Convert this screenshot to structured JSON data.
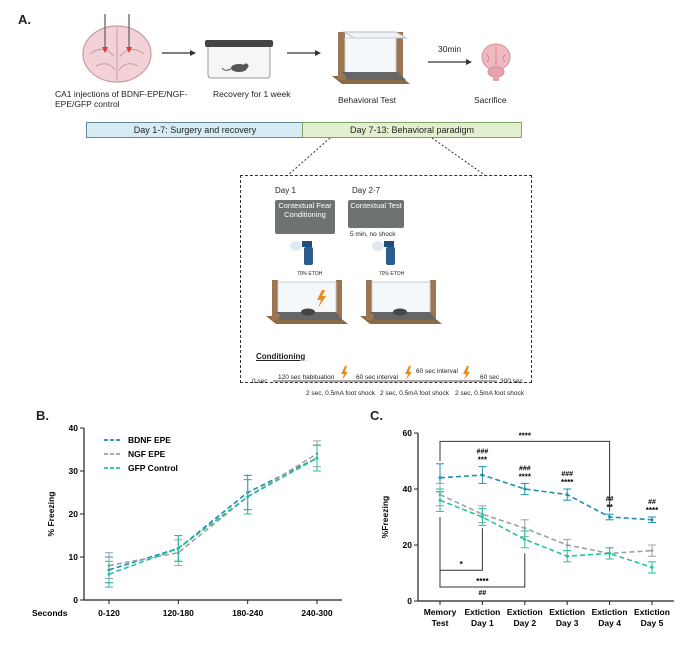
{
  "panelA": {
    "label": "A.",
    "steps": [
      {
        "caption": "CA1 injections of BDNF-EPE/NGF-EPE/GFP control"
      },
      {
        "caption": "Recovery for 1 week"
      },
      {
        "caption": "Behavioral Test"
      },
      {
        "caption": "Sacrifice"
      }
    ],
    "arrow_label": "30min",
    "phase1": "Day 1-7: Surgery and recovery",
    "phase2": "Day 7-13: Behavioral paradigm",
    "inset": {
      "day1": "Day 1",
      "day27": "Day 2-7",
      "box1": "Contextual Fear Conditioning",
      "box2": "Contextual Test",
      "box2_note": "5 min, no shock",
      "etoh1": "70% ETOH",
      "etoh2": "70% ETOH",
      "conditioning_title": "Conditioning",
      "start": "0 sec",
      "end": "300 sec",
      "seg1": "120 sec habituation",
      "seg2": "60 sec interval",
      "seg3": "60 sec interval",
      "seg4": "60 sec",
      "shock1": "2 sec, 0.5mA foot shock",
      "shock2": "2 sec, 0.5mA foot shock",
      "shock3": "2 sec, 0.5mA foot shock"
    }
  },
  "panelB": {
    "label": "B."
  },
  "panelC": {
    "label": "C."
  },
  "colors": {
    "bdnf": "#1f8fb0",
    "ngf": "#a0a0a0",
    "gfp": "#25c2a0",
    "phase1": "#d6ecf5",
    "phase2": "#e3f0cf"
  },
  "chart_data": [
    {
      "type": "line",
      "ylabel": "% Freezing",
      "xlabel": "Seconds",
      "categories": [
        "0-120",
        "120-180",
        "180-240",
        "240-300"
      ],
      "ylim": [
        0,
        40
      ],
      "yticks": [
        "0",
        "10",
        "20",
        "30",
        "40"
      ],
      "legend": [
        "BDNF EPE",
        "NGF EPE",
        "GFP Control"
      ],
      "series": [
        {
          "name": "BDNF EPE",
          "values": [
            7,
            12,
            25,
            33
          ],
          "err": [
            3,
            3,
            4,
            3
          ]
        },
        {
          "name": "NGF EPE",
          "values": [
            8,
            11,
            24,
            34
          ],
          "err": [
            3,
            3,
            4,
            3
          ]
        },
        {
          "name": "GFP Control",
          "values": [
            6,
            12,
            24,
            33
          ],
          "err": [
            3,
            3,
            4,
            3
          ]
        }
      ]
    },
    {
      "type": "line",
      "ylabel": "%Freezing",
      "categories": [
        "Memory Test",
        "Extiction Day 1",
        "Extiction Day 2",
        "Extiction Day 3",
        "Extiction Day 4",
        "Extiction Day 5"
      ],
      "ylim": [
        0,
        60
      ],
      "yticks": [
        "0",
        "20",
        "40",
        "60"
      ],
      "series": [
        {
          "name": "BDNF EPE",
          "values": [
            44,
            45,
            40,
            38,
            30,
            29
          ],
          "err": [
            5,
            3,
            2,
            2,
            1,
            1
          ]
        },
        {
          "name": "NGF EPE",
          "values": [
            38,
            31,
            26,
            20,
            17,
            18
          ],
          "err": [
            4,
            3,
            3,
            2,
            2,
            2
          ]
        },
        {
          "name": "GFP Control",
          "values": [
            36,
            30,
            22,
            16,
            17,
            12
          ],
          "err": [
            4,
            3,
            3,
            2,
            2,
            2
          ]
        }
      ],
      "annotations": {
        "hash_top": [
          "",
          "###",
          "###",
          "###",
          "##",
          "##"
        ],
        "stars": [
          "",
          "***",
          "****",
          "****",
          "**",
          "****"
        ],
        "bracket_top": "****",
        "bracket_small": "*",
        "bracket_bottom_stars": "****",
        "bracket_bottom_hash": "##"
      }
    }
  ]
}
